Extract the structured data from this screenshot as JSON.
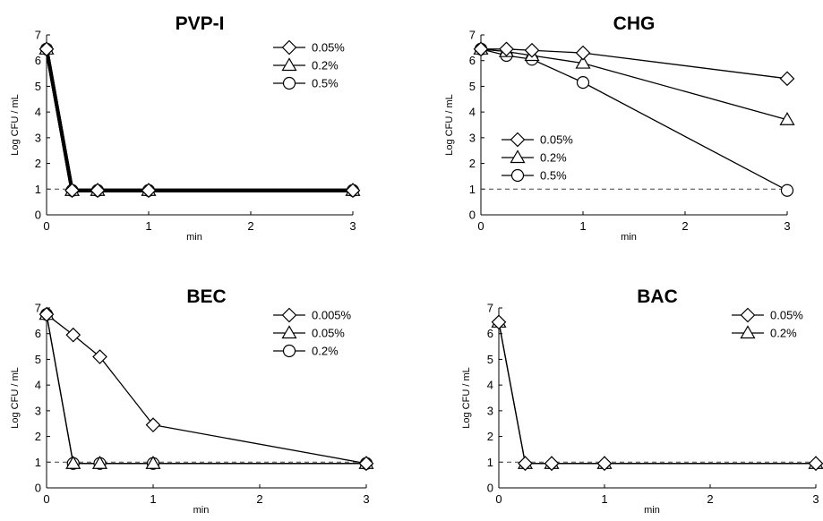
{
  "chart_data": [
    {
      "type": "line",
      "title": "PVP-I",
      "xlabel": "min",
      "ylabel": "Log CFU / mL",
      "xlim": [
        0,
        3
      ],
      "ylim": [
        0,
        7
      ],
      "x_ticks": [
        "0",
        "1",
        "2",
        "3"
      ],
      "y_ticks": [
        "0",
        "1",
        "2",
        "3",
        "4",
        "5",
        "6",
        "7"
      ],
      "detection_limit": 1,
      "legend_position": "top-right",
      "grid": false,
      "series": [
        {
          "name": "0.05%",
          "marker": "diamond",
          "x": [
            0,
            0.25,
            0.5,
            1,
            3
          ],
          "y": [
            6.45,
            0.95,
            0.95,
            0.95,
            0.95
          ]
        },
        {
          "name": "0.2%",
          "marker": "triangle",
          "x": [
            0,
            0.25,
            0.5,
            1,
            3
          ],
          "y": [
            6.45,
            0.95,
            0.95,
            0.95,
            0.95
          ]
        },
        {
          "name": "0.5%",
          "marker": "circle",
          "x": [
            0,
            0.25,
            0.5,
            1,
            3
          ],
          "y": [
            6.45,
            0.95,
            0.95,
            0.95,
            0.95
          ]
        }
      ]
    },
    {
      "type": "line",
      "title": "CHG",
      "xlabel": "min",
      "ylabel": "Log CFU / mL",
      "xlim": [
        0,
        3
      ],
      "ylim": [
        0,
        7
      ],
      "x_ticks": [
        "0",
        "1",
        "2",
        "3"
      ],
      "y_ticks": [
        "0",
        "1",
        "2",
        "3",
        "4",
        "5",
        "6",
        "7"
      ],
      "detection_limit": 1,
      "legend_position": "middle-left",
      "grid": false,
      "series": [
        {
          "name": "0.05%",
          "marker": "diamond",
          "x": [
            0,
            0.25,
            0.5,
            1,
            3
          ],
          "y": [
            6.45,
            6.45,
            6.4,
            6.3,
            5.3
          ]
        },
        {
          "name": "0.2%",
          "marker": "triangle",
          "x": [
            0,
            0.25,
            0.5,
            1,
            3
          ],
          "y": [
            6.45,
            6.35,
            6.2,
            5.9,
            3.7
          ]
        },
        {
          "name": "0.5%",
          "marker": "circle",
          "x": [
            0,
            0.25,
            0.5,
            1,
            3
          ],
          "y": [
            6.45,
            6.2,
            6.05,
            5.15,
            0.95
          ]
        }
      ]
    },
    {
      "type": "line",
      "title": "BEC",
      "xlabel": "min",
      "ylabel": "Log CFU / mL",
      "xlim": [
        0,
        3
      ],
      "ylim": [
        0,
        7
      ],
      "x_ticks": [
        "0",
        "1",
        "2",
        "3"
      ],
      "y_ticks": [
        "0",
        "1",
        "2",
        "3",
        "4",
        "5",
        "6",
        "7"
      ],
      "detection_limit": 1,
      "legend_position": "top-right",
      "grid": false,
      "series": [
        {
          "name": "0.005%",
          "marker": "diamond",
          "x": [
            0,
            0.25,
            0.5,
            1,
            3
          ],
          "y": [
            6.75,
            5.95,
            5.1,
            2.45,
            0.95
          ]
        },
        {
          "name": "0.05%",
          "marker": "triangle",
          "x": [
            0,
            0.25,
            0.5,
            1,
            3
          ],
          "y": [
            6.75,
            0.95,
            0.95,
            0.95,
            0.95
          ]
        },
        {
          "name": "0.2%",
          "marker": "circle",
          "x": [
            0,
            0.25,
            0.5,
            1,
            3
          ],
          "y": [
            6.75,
            0.95,
            0.95,
            0.95,
            0.95
          ]
        }
      ]
    },
    {
      "type": "line",
      "title": "BAC",
      "xlabel": "min",
      "ylabel": "Log CFU / mL",
      "xlim": [
        0,
        3
      ],
      "ylim": [
        0,
        7
      ],
      "x_ticks": [
        "0",
        "1",
        "2",
        "3"
      ],
      "y_ticks": [
        "0",
        "1",
        "2",
        "3",
        "4",
        "5",
        "6",
        "7"
      ],
      "detection_limit": 1,
      "legend_position": "top-right",
      "grid": false,
      "series": [
        {
          "name": "0.05%",
          "marker": "diamond",
          "x": [
            0,
            0.25,
            0.5,
            1,
            3
          ],
          "y": [
            6.45,
            0.95,
            0.95,
            0.95,
            0.95
          ]
        },
        {
          "name": "0.2%",
          "marker": "triangle",
          "x": [
            0,
            0.25,
            0.5,
            1,
            3
          ],
          "y": [
            6.45,
            0.95,
            0.95,
            0.95,
            0.95
          ]
        }
      ]
    }
  ]
}
